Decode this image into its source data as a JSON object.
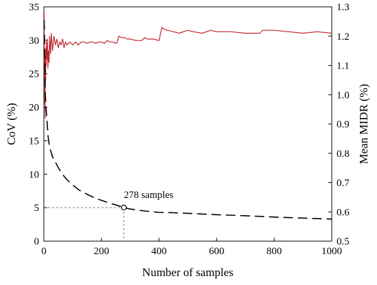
{
  "chart_data": {
    "type": "line",
    "xlabel": "Number of samples",
    "ylabel_left": "CoV (%)",
    "ylabel_right": "Mean MIDR (%)",
    "xlim": [
      0,
      1000
    ],
    "ylim_left": [
      0,
      35
    ],
    "ylim_right": [
      0.5,
      1.3
    ],
    "x_ticks": [
      "0",
      "200",
      "400",
      "600",
      "800",
      "1000"
    ],
    "y_left_ticks": [
      "0",
      "5",
      "10",
      "15",
      "20",
      "25",
      "30",
      "35"
    ],
    "y_right_ticks": [
      "0.5",
      "0.6",
      "0.7",
      "0.8",
      "0.9",
      "1.0",
      "1.1",
      "1.2",
      "1.3"
    ],
    "grid": false,
    "legend": "none",
    "series": [
      {
        "axis": "right",
        "style": "solid",
        "color": "#c0262d",
        "x": [
          1,
          2,
          3,
          4,
          5,
          6,
          7,
          8,
          9,
          10,
          12,
          14,
          16,
          18,
          20,
          23,
          26,
          30,
          35,
          40,
          45,
          50,
          55,
          60,
          65,
          70,
          75,
          80,
          90,
          100,
          110,
          120,
          130,
          140,
          150,
          160,
          170,
          180,
          190,
          200,
          210,
          220,
          230,
          240,
          250,
          255,
          260,
          270,
          280,
          290,
          300,
          320,
          340,
          350,
          360,
          380,
          400,
          410,
          415,
          430,
          450,
          470,
          500,
          520,
          550,
          580,
          600,
          650,
          700,
          750,
          760,
          800,
          850,
          900,
          950,
          1000
        ],
        "y": [
          1.28,
          0.97,
          1.12,
          0.92,
          1.13,
          1.05,
          1.16,
          1.1,
          1.18,
          1.12,
          1.19,
          1.09,
          1.15,
          1.11,
          1.2,
          1.14,
          1.21,
          1.15,
          1.2,
          1.17,
          1.19,
          1.16,
          1.18,
          1.17,
          1.19,
          1.16,
          1.18,
          1.17,
          1.18,
          1.17,
          1.18,
          1.17,
          1.18,
          1.18,
          1.175,
          1.18,
          1.18,
          1.175,
          1.18,
          1.18,
          1.175,
          1.185,
          1.18,
          1.18,
          1.175,
          1.18,
          1.2,
          1.195,
          1.195,
          1.19,
          1.19,
          1.185,
          1.185,
          1.195,
          1.19,
          1.19,
          1.185,
          1.23,
          1.225,
          1.22,
          1.215,
          1.21,
          1.22,
          1.215,
          1.21,
          1.22,
          1.215,
          1.215,
          1.21,
          1.21,
          1.22,
          1.22,
          1.215,
          1.21,
          1.215,
          1.21
        ]
      },
      {
        "axis": "left",
        "style": "dashed",
        "color": "#000000",
        "x": [
          1,
          3,
          5,
          8,
          10,
          15,
          20,
          30,
          40,
          50,
          60,
          70,
          80,
          100,
          120,
          150,
          180,
          200,
          220,
          250,
          278,
          300,
          350,
          400,
          450,
          500,
          600,
          700,
          800,
          900,
          1000
        ],
        "y": [
          33,
          28,
          22,
          19.5,
          18.5,
          15.5,
          14,
          12.6,
          11.8,
          11,
          10.3,
          9.7,
          9.2,
          8.4,
          7.7,
          7,
          6.4,
          6.1,
          5.8,
          5.4,
          5.02,
          4.8,
          4.5,
          4.3,
          4.25,
          4.15,
          3.95,
          3.8,
          3.6,
          3.45,
          3.3
        ]
      }
    ],
    "annotation": {
      "text": "278 samples",
      "x": 278,
      "y": 5.02
    }
  }
}
